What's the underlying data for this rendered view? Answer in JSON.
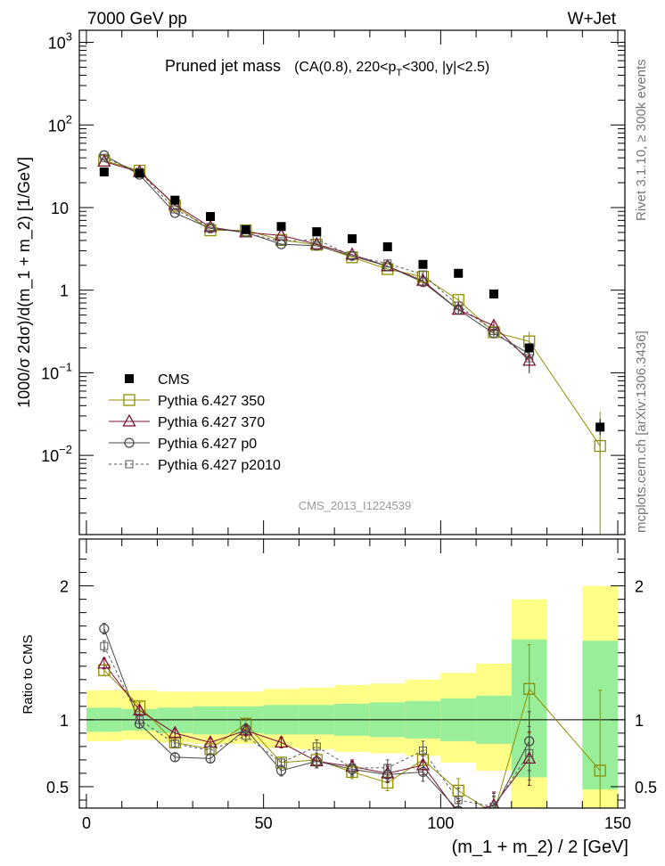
{
  "header": {
    "left": "7000 GeV pp",
    "right": "W+Jet"
  },
  "side_text": {
    "top": "Rivet 3.1.10, ≥ 300k events",
    "bottom": "mcplots.cern.ch [arXiv:1306.3436]"
  },
  "colors": {
    "cms": "#000000",
    "p350": "#8f8f00",
    "p370": "#7a0f32",
    "p0": "#444444",
    "p2010": "#555555",
    "band_inner": "#99ee99",
    "band_outer": "#ffff88"
  },
  "chart_data": [
    {
      "type": "scatter",
      "panel": "main",
      "title_main": "Pruned jet mass",
      "title_sub": "(CA(0.8), 220<p",
      "title_sub_T": "T",
      "title_sub_end": "<300, |y|<2.5)",
      "ylabel": "1000/σ 2dσ)/d(m_1 + m_2) [1/GeV]",
      "yscale": "log",
      "ylim": [
        0.0011,
        1400
      ],
      "xlim": [
        -2,
        152
      ],
      "yticks": [
        {
          "v": 1000,
          "base": "10",
          "exp": "3"
        },
        {
          "v": 100,
          "base": "10",
          "exp": "2"
        },
        {
          "v": 10,
          "base": "10",
          "exp": ""
        },
        {
          "v": 1,
          "base": "1",
          "exp": ""
        },
        {
          "v": 0.1,
          "base": "10",
          "exp": "−1"
        },
        {
          "v": 0.01,
          "base": "10",
          "exp": "−2"
        }
      ],
      "watermark": "CMS_2013_I1224539",
      "legend": [
        {
          "name": "CMS",
          "key": "cms"
        },
        {
          "name": "Pythia 6.427 350",
          "key": "p350"
        },
        {
          "name": "Pythia 6.427 370",
          "key": "p370"
        },
        {
          "name": "Pythia 6.427 p0",
          "key": "p0"
        },
        {
          "name": "Pythia 6.427 p2010",
          "key": "p2010"
        }
      ],
      "x": [
        5,
        15,
        25,
        35,
        45,
        55,
        65,
        75,
        85,
        95,
        105,
        115,
        125,
        145
      ],
      "cms": [
        27,
        26,
        12.3,
        7.8,
        5.4,
        5.9,
        5.1,
        4.2,
        3.35,
        2.05,
        1.6,
        0.9,
        0.2,
        0.022
      ],
      "series": [
        {
          "key": "p350",
          "name": "Pythia 6.427 350",
          "marker": "square-open",
          "values": [
            37,
            28,
            10.5,
            5.3,
            5.3,
            4.05,
            3.55,
            2.5,
            1.8,
            1.45,
            0.76,
            0.31,
            0.24,
            0.013
          ]
        },
        {
          "key": "p370",
          "name": "Pythia 6.427 370",
          "marker": "triangle-open",
          "values": [
            36,
            27,
            10.8,
            5.8,
            5.0,
            4.6,
            3.6,
            2.7,
            1.95,
            1.3,
            0.58,
            0.37,
            0.14,
            null
          ]
        },
        {
          "key": "p0",
          "name": "Pythia 6.427 p0",
          "marker": "circle-open",
          "values": [
            43,
            25,
            8.6,
            5.6,
            5.0,
            3.6,
            3.45,
            2.6,
            1.95,
            1.25,
            0.58,
            0.3,
            0.17,
            null
          ]
        },
        {
          "key": "p2010",
          "name": "Pythia 6.427 p2010",
          "marker": "square-small",
          "values": [
            40,
            27,
            9.5,
            5.8,
            4.9,
            3.9,
            4.1,
            2.6,
            2.1,
            1.55,
            0.65,
            0.32,
            0.15,
            null
          ]
        }
      ]
    },
    {
      "type": "scatter",
      "panel": "ratio",
      "ylabel": "Ratio to CMS",
      "xlabel": "(m_1 + m_2) / 2 [GeV]",
      "ylim": [
        0.34,
        2.35
      ],
      "xlim": [
        -2,
        152
      ],
      "yticks": [
        0.5,
        1,
        2
      ],
      "xticks": [
        0,
        50,
        100,
        150
      ],
      "x": [
        5,
        15,
        25,
        35,
        45,
        55,
        65,
        75,
        85,
        95,
        105,
        115,
        125,
        145
      ],
      "band_edges": [
        0,
        10,
        20,
        30,
        40,
        50,
        60,
        70,
        80,
        90,
        100,
        110,
        120,
        130,
        140,
        150
      ],
      "band_present": [
        1,
        1,
        1,
        1,
        1,
        1,
        1,
        1,
        1,
        1,
        1,
        1,
        1,
        0,
        1
      ],
      "band_inner_lo": [
        0.91,
        0.92,
        0.9,
        0.89,
        0.9,
        0.89,
        0.89,
        0.88,
        0.87,
        0.86,
        0.84,
        0.82,
        0.57,
        0,
        0.48
      ],
      "band_inner_hi": [
        1.09,
        1.08,
        1.09,
        1.1,
        1.1,
        1.11,
        1.11,
        1.12,
        1.13,
        1.14,
        1.16,
        1.18,
        1.6,
        0,
        1.59
      ],
      "band_outer_lo": [
        0.84,
        0.85,
        0.83,
        0.82,
        0.82,
        0.79,
        0.78,
        0.76,
        0.75,
        0.73,
        0.68,
        0.62,
        0.34,
        0,
        0.34
      ],
      "band_outer_hi": [
        1.22,
        1.22,
        1.21,
        1.21,
        1.21,
        1.23,
        1.24,
        1.26,
        1.27,
        1.3,
        1.35,
        1.42,
        1.9,
        0,
        2.0
      ],
      "series": [
        {
          "key": "p350",
          "name": "Pythia 6.427 350",
          "marker": "square-open",
          "values": [
            1.37,
            1.1,
            0.83,
            0.78,
            0.97,
            0.68,
            0.7,
            0.61,
            0.53,
            0.7,
            0.47,
            0.3,
            1.23,
            0.62
          ],
          "err": [
            0.04,
            0.03,
            0.03,
            0.03,
            0.04,
            0.04,
            0.05,
            0.05,
            0.06,
            0.07,
            0.09,
            0.12,
            0.33,
            0.6
          ]
        },
        {
          "key": "p370",
          "name": "Pythia 6.427 370",
          "marker": "triangle-open",
          "values": [
            1.42,
            1.07,
            0.9,
            0.83,
            0.92,
            0.83,
            0.69,
            0.65,
            0.6,
            0.66,
            0.3,
            0.36,
            0.71,
            null
          ],
          "err": [
            0.04,
            0.03,
            0.03,
            0.03,
            0.04,
            0.04,
            0.05,
            0.05,
            0.06,
            0.07,
            0.09,
            0.1,
            0.2,
            null
          ]
        },
        {
          "key": "p0",
          "name": "Pythia 6.427 p0",
          "marker": "circle-open",
          "values": [
            1.68,
            0.97,
            0.72,
            0.71,
            0.93,
            0.62,
            0.69,
            0.63,
            0.59,
            0.61,
            0.32,
            0.33,
            0.84,
            null
          ],
          "err": [
            0.04,
            0.03,
            0.03,
            0.03,
            0.04,
            0.04,
            0.05,
            0.05,
            0.06,
            0.07,
            0.09,
            0.1,
            0.22,
            null
          ]
        },
        {
          "key": "p2010",
          "name": "Pythia 6.427 p2010",
          "marker": "square-small",
          "values": [
            1.55,
            1.0,
            0.82,
            0.77,
            0.88,
            0.68,
            0.8,
            0.64,
            0.64,
            0.77,
            0.4,
            0.35,
            0.75,
            null
          ],
          "err": [
            0.04,
            0.03,
            0.03,
            0.03,
            0.04,
            0.04,
            0.05,
            0.05,
            0.06,
            0.07,
            0.09,
            0.1,
            0.2,
            null
          ]
        }
      ]
    }
  ]
}
